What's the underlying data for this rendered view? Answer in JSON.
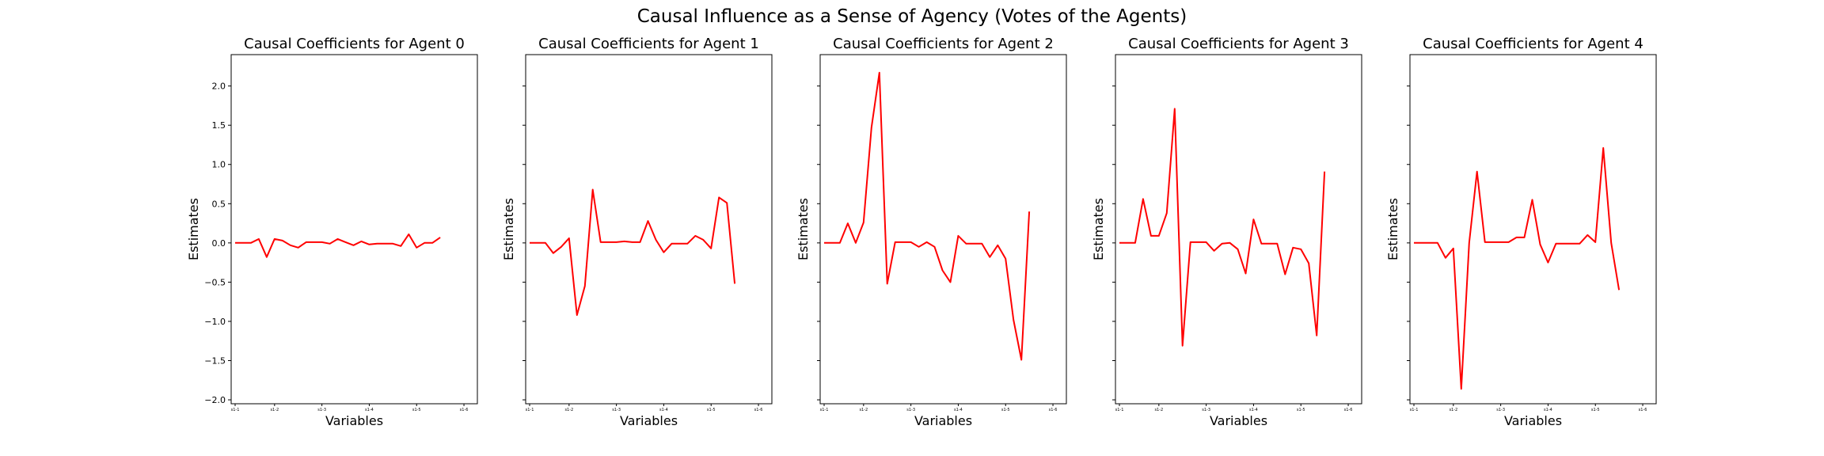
{
  "figure": {
    "title": "Causal Influence as a Sense of Agency (Votes of the Agents)",
    "line_color": "#ff0000"
  },
  "chart_data": [
    {
      "type": "line",
      "title": "Causal Coefficients for Agent 0",
      "xlabel": "Variables",
      "ylabel": "Estimates",
      "ylim": [
        -2.05,
        2.4
      ],
      "yticks": [
        -2.0,
        -1.5,
        -1.0,
        -0.5,
        0.0,
        0.5,
        1.0,
        1.5,
        2.0
      ],
      "ytick_labels": [
        "−2.0",
        "−1.5",
        "−1.0",
        "−0.5",
        "0.0",
        "0.5",
        "1.0",
        "1.5",
        "2.0"
      ],
      "xtick_positions": [
        0,
        5,
        11,
        17,
        23,
        29
      ],
      "xtick_labels": [
        "s1-1",
        "s1-2",
        "s1-3",
        "s1-4",
        "s1-5",
        "s1-6"
      ],
      "series": [
        {
          "values": [
            0.0,
            0.0,
            0.0,
            0.05,
            -0.18,
            0.05,
            0.03,
            -0.03,
            -0.06,
            0.01,
            0.01,
            0.01,
            -0.01,
            0.05,
            0.01,
            -0.03,
            0.02,
            -0.02,
            -0.01,
            -0.01,
            -0.01,
            -0.04,
            0.11,
            -0.06,
            0.0,
            0.0,
            0.07
          ]
        }
      ]
    },
    {
      "type": "line",
      "title": "Causal Coefficients for Agent 1",
      "xlabel": "Variables",
      "ylabel": "Estimates",
      "ylim": [
        -2.05,
        2.4
      ],
      "yticks": [
        -2.0,
        -1.5,
        -1.0,
        -0.5,
        0.0,
        0.5,
        1.0,
        1.5,
        2.0
      ],
      "ytick_labels": [],
      "xtick_positions": [
        0,
        5,
        11,
        17,
        23,
        29
      ],
      "xtick_labels": [
        "s1-1",
        "s1-2",
        "s1-3",
        "s1-4",
        "s1-5",
        "s1-6"
      ],
      "series": [
        {
          "values": [
            0.0,
            0.0,
            0.0,
            -0.13,
            -0.05,
            0.06,
            -0.92,
            -0.55,
            0.68,
            0.01,
            0.01,
            0.01,
            0.02,
            0.01,
            0.01,
            0.28,
            0.04,
            -0.12,
            -0.01,
            -0.01,
            -0.01,
            0.09,
            0.04,
            -0.07,
            0.58,
            0.51,
            -0.52
          ]
        }
      ]
    },
    {
      "type": "line",
      "title": "Causal Coefficients for Agent 2",
      "xlabel": "Variables",
      "ylabel": "Estimates",
      "ylim": [
        -2.05,
        2.4
      ],
      "yticks": [
        -2.0,
        -1.5,
        -1.0,
        -0.5,
        0.0,
        0.5,
        1.0,
        1.5,
        2.0
      ],
      "ytick_labels": [],
      "xtick_positions": [
        0,
        5,
        11,
        17,
        23,
        29
      ],
      "xtick_labels": [
        "s1-1",
        "s1-2",
        "s1-3",
        "s1-4",
        "s1-5",
        "s1-6"
      ],
      "series": [
        {
          "values": [
            0.0,
            0.0,
            0.0,
            0.25,
            0.0,
            0.26,
            1.47,
            2.17,
            -0.52,
            0.01,
            0.01,
            0.01,
            -0.05,
            0.01,
            -0.05,
            -0.35,
            -0.5,
            0.09,
            -0.01,
            -0.01,
            -0.01,
            -0.18,
            -0.03,
            -0.2,
            -0.98,
            -1.49,
            0.4
          ]
        }
      ]
    },
    {
      "type": "line",
      "title": "Causal Coefficients for Agent 3",
      "xlabel": "Variables",
      "ylabel": "Estimates",
      "ylim": [
        -2.05,
        2.4
      ],
      "yticks": [
        -2.0,
        -1.5,
        -1.0,
        -0.5,
        0.0,
        0.5,
        1.0,
        1.5,
        2.0
      ],
      "ytick_labels": [],
      "xtick_positions": [
        0,
        5,
        11,
        17,
        23,
        29
      ],
      "xtick_labels": [
        "s1-1",
        "s1-2",
        "s1-3",
        "s1-4",
        "s1-5",
        "s1-6"
      ],
      "series": [
        {
          "values": [
            0.0,
            0.0,
            0.0,
            0.56,
            0.09,
            0.09,
            0.38,
            1.71,
            -1.31,
            0.01,
            0.01,
            0.01,
            -0.1,
            -0.01,
            0.0,
            -0.08,
            -0.39,
            0.3,
            -0.01,
            -0.01,
            -0.01,
            -0.4,
            -0.06,
            -0.08,
            -0.26,
            -1.18,
            0.91
          ]
        }
      ]
    },
    {
      "type": "line",
      "title": "Causal Coefficients for Agent 4",
      "xlabel": "Variables",
      "ylabel": "Estimates",
      "ylim": [
        -2.05,
        2.4
      ],
      "yticks": [
        -2.0,
        -1.5,
        -1.0,
        -0.5,
        0.0,
        0.5,
        1.0,
        1.5,
        2.0
      ],
      "ytick_labels": [],
      "xtick_positions": [
        0,
        5,
        11,
        17,
        23,
        29
      ],
      "xtick_labels": [
        "s1-1",
        "s1-2",
        "s1-3",
        "s1-4",
        "s1-5",
        "s1-6"
      ],
      "series": [
        {
          "values": [
            0.0,
            0.0,
            0.0,
            0.0,
            -0.19,
            -0.07,
            -1.86,
            0.0,
            0.91,
            0.01,
            0.01,
            0.01,
            0.01,
            0.07,
            0.07,
            0.55,
            -0.02,
            -0.25,
            -0.01,
            -0.01,
            -0.01,
            -0.01,
            0.1,
            0.01,
            1.21,
            0.0,
            -0.6
          ]
        }
      ]
    }
  ]
}
